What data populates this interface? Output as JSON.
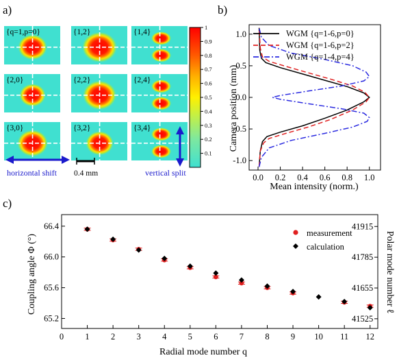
{
  "panels": {
    "a": "a)",
    "b": "b)",
    "c": "c)"
  },
  "chart_data": [
    {
      "type": "heatmap",
      "panel": "a",
      "grid_columns": [
        "p=0",
        "p=2",
        "p=4"
      ],
      "tiles": [
        {
          "label": "{q=1,p=0}",
          "q": 1,
          "p": 0,
          "shape": "single",
          "size": 1.0
        },
        {
          "label": "{1,2}",
          "q": 1,
          "p": 2,
          "shape": "single",
          "size": 1.2
        },
        {
          "label": "{1,4}",
          "q": 1,
          "p": 4,
          "shape": "split",
          "size": 0.75
        },
        {
          "label": "{2,0}",
          "q": 2,
          "p": 0,
          "shape": "single",
          "size": 0.9
        },
        {
          "label": "{2,2}",
          "q": 2,
          "p": 2,
          "shape": "single",
          "size": 1.15
        },
        {
          "label": "{2,4}",
          "q": 2,
          "p": 4,
          "shape": "split",
          "size": 0.75
        },
        {
          "label": "{3,0}",
          "q": 3,
          "p": 0,
          "shape": "single",
          "size": 1.05
        },
        {
          "label": "{3,2}",
          "q": 3,
          "p": 2,
          "shape": "single",
          "size": 0.95
        },
        {
          "label": "{3,4}",
          "q": 3,
          "p": 4,
          "shape": "split",
          "size": 0.75
        }
      ],
      "colorbar": {
        "ticks": [
          0.1,
          0.2,
          0.3,
          0.4,
          0.5,
          0.6,
          0.7,
          0.8,
          0.9,
          1
        ],
        "tick_labels": [
          "0.1",
          "0.2",
          "0.3",
          "0.4",
          "0.5",
          "0.6",
          "0.7",
          "0.8",
          "0.9",
          "1"
        ],
        "range": [
          0,
          1
        ]
      },
      "scale_bar_label": "0.4 mm",
      "annotations": {
        "horizontal": "horizontal shift",
        "vertical": "vertical split"
      },
      "colors": {
        "background": "#40e0d0",
        "peak": "#ff0000",
        "arrow": "#1a1acc"
      }
    },
    {
      "type": "line",
      "panel": "b",
      "xlabel": "Mean intensity (norm.)",
      "ylabel": "Camera position (mm)",
      "xlim": [
        -0.08,
        1.1
      ],
      "ylim": [
        -1.15,
        1.15
      ],
      "xticks": [
        0.0,
        0.2,
        0.4,
        0.6,
        0.8,
        1.0
      ],
      "xtick_labels": [
        "0.0",
        "0.2",
        "0.4",
        "0.6",
        "0.8",
        "1.0"
      ],
      "yticks": [
        -1.0,
        -0.5,
        0.0,
        0.5,
        1.0
      ],
      "ytick_labels": [
        "-1.0",
        "-0.5",
        "0.0",
        "0.5",
        "1.0"
      ],
      "legend_position": "top-right",
      "series": [
        {
          "name": "WGM {q=1-6,p=0}",
          "color": "#000000",
          "dash": "solid",
          "points": [
            [
              0.01,
              -1.1
            ],
            [
              0.02,
              -0.85
            ],
            [
              0.04,
              -0.7
            ],
            [
              0.08,
              -0.62
            ],
            [
              0.2,
              -0.55
            ],
            [
              0.4,
              -0.45
            ],
            [
              0.6,
              -0.33
            ],
            [
              0.8,
              -0.2
            ],
            [
              0.95,
              -0.07
            ],
            [
              1.0,
              0.0
            ],
            [
              0.95,
              0.07
            ],
            [
              0.8,
              0.17
            ],
            [
              0.6,
              0.27
            ],
            [
              0.4,
              0.37
            ],
            [
              0.2,
              0.47
            ],
            [
              0.07,
              0.55
            ],
            [
              0.03,
              0.62
            ],
            [
              0.015,
              0.75
            ],
            [
              0.01,
              1.1
            ]
          ]
        },
        {
          "name": "WGM {q=1-6,p=2}",
          "color": "#e02020",
          "dash": "dashed",
          "points": [
            [
              0.01,
              -1.1
            ],
            [
              0.02,
              -0.85
            ],
            [
              0.05,
              -0.72
            ],
            [
              0.1,
              -0.65
            ],
            [
              0.25,
              -0.57
            ],
            [
              0.45,
              -0.47
            ],
            [
              0.65,
              -0.35
            ],
            [
              0.85,
              -0.2
            ],
            [
              0.97,
              -0.07
            ],
            [
              1.0,
              0.0
            ],
            [
              0.96,
              0.08
            ],
            [
              0.85,
              0.18
            ],
            [
              0.65,
              0.29
            ],
            [
              0.45,
              0.39
            ],
            [
              0.25,
              0.49
            ],
            [
              0.1,
              0.57
            ],
            [
              0.04,
              0.64
            ],
            [
              0.02,
              0.78
            ],
            [
              0.01,
              1.1
            ]
          ]
        },
        {
          "name": "WGM {q=1-4,p=4}",
          "color": "#2a2ae0",
          "dash": "dashdot",
          "points": [
            [
              0.01,
              -1.1
            ],
            [
              0.03,
              -0.95
            ],
            [
              0.1,
              -0.8
            ],
            [
              0.3,
              -0.68
            ],
            [
              0.6,
              -0.57
            ],
            [
              0.85,
              -0.47
            ],
            [
              0.98,
              -0.38
            ],
            [
              1.0,
              -0.32
            ],
            [
              0.95,
              -0.25
            ],
            [
              0.75,
              -0.18
            ],
            [
              0.45,
              -0.1
            ],
            [
              0.2,
              -0.03
            ],
            [
              0.13,
              0.0
            ],
            [
              0.2,
              0.03
            ],
            [
              0.45,
              0.1
            ],
            [
              0.75,
              0.18
            ],
            [
              0.95,
              0.26
            ],
            [
              1.0,
              0.33
            ],
            [
              0.97,
              0.4
            ],
            [
              0.85,
              0.5
            ],
            [
              0.6,
              0.6
            ],
            [
              0.3,
              0.7
            ],
            [
              0.1,
              0.82
            ],
            [
              0.03,
              0.95
            ],
            [
              0.01,
              1.1
            ]
          ]
        }
      ]
    },
    {
      "type": "scatter",
      "panel": "c",
      "xlabel": "Radial mode number q",
      "ylabel_left": "Coupling angle Φ (°)",
      "ylabel_right": "Polar mode number ℓ",
      "xlim": [
        0,
        12.3
      ],
      "ylim": [
        65.07,
        66.55
      ],
      "xticks": [
        0,
        1,
        2,
        3,
        4,
        5,
        6,
        7,
        8,
        9,
        10,
        11,
        12
      ],
      "xtick_labels": [
        "0",
        "1",
        "2",
        "3",
        "4",
        "5",
        "6",
        "7",
        "8",
        "9",
        "10",
        "11",
        "12"
      ],
      "yticks": [
        65.2,
        65.6,
        66.0,
        66.4
      ],
      "ytick_labels": [
        "65.2",
        "65.6",
        "66.0",
        "66.4"
      ],
      "y2_ticks": [
        41525,
        41655,
        41785,
        41915
      ],
      "y2_tick_labels": [
        "41525",
        "41655",
        "41785",
        "41915"
      ],
      "y2_range": [
        41484,
        41965
      ],
      "legend_position": "top-right",
      "series": [
        {
          "name": "measurement",
          "color": "#e02020",
          "marker": "circle",
          "x": [
            1,
            2,
            3,
            4,
            5,
            6,
            7,
            8,
            9,
            11,
            12
          ],
          "y": [
            66.36,
            66.22,
            66.1,
            65.96,
            65.86,
            65.74,
            65.66,
            65.6,
            65.53,
            65.41,
            65.36
          ],
          "err": [
            0.015,
            0.015,
            0.015,
            0.015,
            0.015,
            0.015,
            0.015,
            0.015,
            0.015,
            0.015,
            0.015
          ]
        },
        {
          "name": "calculation",
          "color": "#000000",
          "marker": "diamond",
          "x": [
            1,
            2,
            3,
            4,
            5,
            6,
            7,
            8,
            9,
            10,
            11,
            12
          ],
          "y": [
            66.36,
            66.23,
            66.09,
            65.98,
            65.88,
            65.79,
            65.7,
            65.62,
            65.55,
            65.48,
            65.42,
            65.34
          ]
        }
      ]
    }
  ]
}
